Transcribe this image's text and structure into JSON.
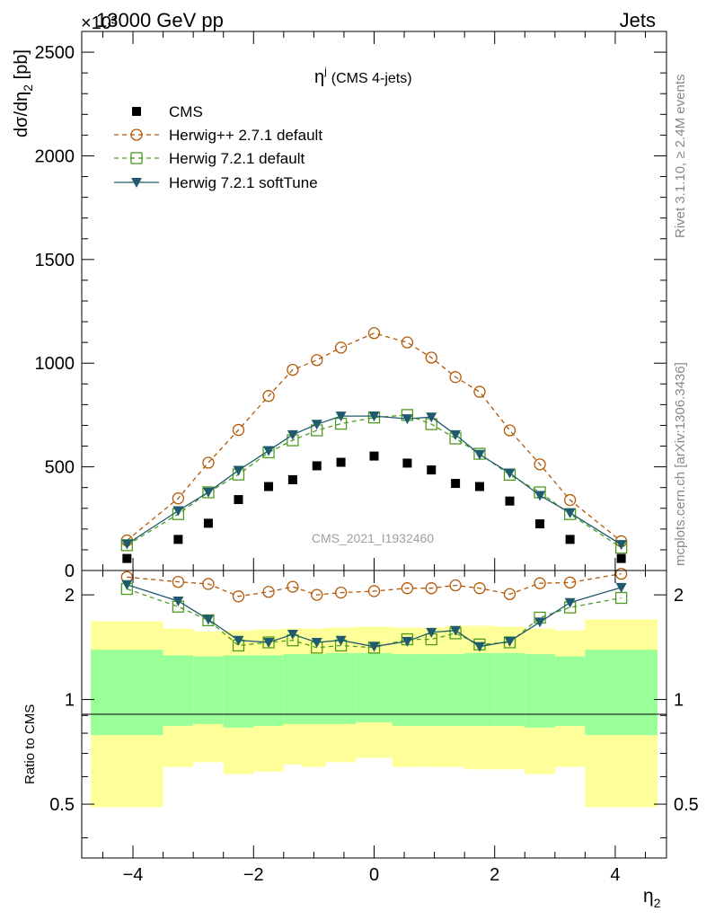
{
  "header": {
    "left": "13000 GeV pp",
    "right": "Jets",
    "exponent": "×10³"
  },
  "side_labels": {
    "rivet": "Rivet 3.1.10, ≥ 2.4M events",
    "mcplots": "mcplots.cern.ch [arXiv:1306.3436]"
  },
  "watermark": "CMS_2021_I1932460",
  "chart_data": [
    {
      "type": "scatter",
      "panel": "main",
      "title": "ηʲ (CMS 4-jets)",
      "title_main": "η",
      "title_sup": "j",
      "title_rest": "(CMS 4-jets)",
      "ylabel_parts": [
        "dσ/dη",
        "2",
        " [pb]"
      ],
      "xlabel": "η",
      "xlabel_sub": "2",
      "xlim": [
        -4.85,
        4.85
      ],
      "ylim": [
        0,
        2600
      ],
      "yticks": [
        0,
        500,
        1000,
        1500,
        2000,
        2500
      ],
      "ytick_labels": [
        "0",
        "500",
        "1000",
        "1500",
        "2000",
        "2500"
      ],
      "x": [
        -4.1,
        -3.25,
        -2.75,
        -2.25,
        -1.75,
        -1.35,
        -0.95,
        -0.55,
        0.0,
        0.55,
        0.95,
        1.35,
        1.75,
        2.25,
        2.75,
        3.25,
        4.1
      ],
      "series": [
        {
          "name": "CMS",
          "color": "#000000",
          "marker": "square-filled",
          "line": "none",
          "values": [
            58,
            150,
            228,
            342,
            405,
            438,
            505,
            522,
            552,
            518,
            485,
            420,
            405,
            335,
            225,
            150,
            58
          ]
        },
        {
          "name": "Herwig++ 2.7.1 default",
          "color": "#b35806",
          "marker": "circle-open",
          "line": "dashed",
          "values": [
            145,
            348,
            520,
            678,
            842,
            968,
            1015,
            1075,
            1145,
            1100,
            1027,
            933,
            862,
            676,
            512,
            340,
            141
          ]
        },
        {
          "name": "Herwig 7.2.1 default",
          "color": "#4d9c1f",
          "marker": "square-open",
          "line": "dashed",
          "values": [
            122,
            272,
            377,
            463,
            570,
            628,
            676,
            708,
            738,
            750,
            706,
            637,
            563,
            462,
            377,
            272,
            110
          ]
        },
        {
          "name": "Herwig 7.2.1 softTune",
          "color": "#1f5a6e",
          "marker": "triangle-down-filled",
          "line": "solid",
          "values": [
            128,
            288,
            378,
            483,
            578,
            655,
            705,
            745,
            745,
            732,
            740,
            655,
            560,
            470,
            362,
            278,
            125
          ]
        }
      ]
    },
    {
      "type": "area",
      "panel": "ratio",
      "ylabel": "Ratio to CMS",
      "xlim": [
        -4.85,
        4.85
      ],
      "ylim": [
        0.35,
        2.35
      ],
      "yticks": [
        0.5,
        1,
        2
      ],
      "ytick_labels": [
        "0.5",
        "1",
        "2"
      ],
      "xticks": [
        -4,
        -2,
        0,
        2,
        4
      ],
      "xtick_labels": [
        "−4",
        "−2",
        "0",
        "2",
        "4"
      ],
      "bin_edges": [
        -4.7,
        -3.5,
        -3.0,
        -2.5,
        -2.0,
        -1.5,
        -1.2,
        -0.8,
        -0.3,
        0.3,
        0.8,
        1.2,
        1.5,
        2.0,
        2.5,
        3.0,
        3.5,
        4.7
      ],
      "band_stat_low": [
        0.79,
        0.84,
        0.85,
        0.83,
        0.84,
        0.85,
        0.85,
        0.85,
        0.86,
        0.84,
        0.84,
        0.84,
        0.84,
        0.84,
        0.83,
        0.84,
        0.79
      ],
      "band_stat_high": [
        1.39,
        1.34,
        1.33,
        1.34,
        1.34,
        1.35,
        1.35,
        1.36,
        1.36,
        1.35,
        1.35,
        1.35,
        1.36,
        1.36,
        1.35,
        1.33,
        1.39
      ],
      "band_total_low": [
        0.49,
        0.64,
        0.66,
        0.61,
        0.62,
        0.65,
        0.64,
        0.66,
        0.68,
        0.64,
        0.64,
        0.64,
        0.63,
        0.63,
        0.61,
        0.64,
        0.49
      ],
      "band_total_high": [
        1.68,
        1.6,
        1.57,
        1.58,
        1.59,
        1.6,
        1.6,
        1.61,
        1.62,
        1.61,
        1.61,
        1.63,
        1.63,
        1.62,
        1.6,
        1.58,
        1.7
      ],
      "band_stat_color": "#99ff99",
      "band_total_color": "#ffff99",
      "x": [
        -4.1,
        -3.25,
        -2.75,
        -2.25,
        -1.75,
        -1.35,
        -0.95,
        -0.55,
        0.0,
        0.55,
        0.95,
        1.35,
        1.75,
        2.25,
        2.75,
        3.25,
        4.1
      ],
      "series": [
        {
          "name": "Herwig++ 2.7.1 default",
          "color": "#b35806",
          "marker": "circle-open",
          "line": "dashed",
          "values": [
            2.25,
            2.18,
            2.15,
            1.98,
            2.04,
            2.11,
            2.0,
            2.03,
            2.05,
            2.09,
            2.09,
            2.13,
            2.09,
            2.01,
            2.16,
            2.17,
            2.3
          ]
        },
        {
          "name": "Herwig 7.2.1 default",
          "color": "#4d9c1f",
          "marker": "square-open",
          "line": "dashed",
          "values": [
            2.08,
            1.85,
            1.69,
            1.43,
            1.46,
            1.48,
            1.41,
            1.43,
            1.41,
            1.49,
            1.49,
            1.55,
            1.44,
            1.46,
            1.72,
            1.84,
            1.96
          ]
        },
        {
          "name": "Herwig 7.2.1 softTune",
          "color": "#1f5a6e",
          "marker": "triangle-down-filled",
          "line": "solid",
          "values": [
            2.14,
            1.92,
            1.7,
            1.48,
            1.46,
            1.54,
            1.46,
            1.48,
            1.42,
            1.47,
            1.56,
            1.58,
            1.42,
            1.47,
            1.67,
            1.9,
            2.1
          ]
        }
      ]
    }
  ]
}
